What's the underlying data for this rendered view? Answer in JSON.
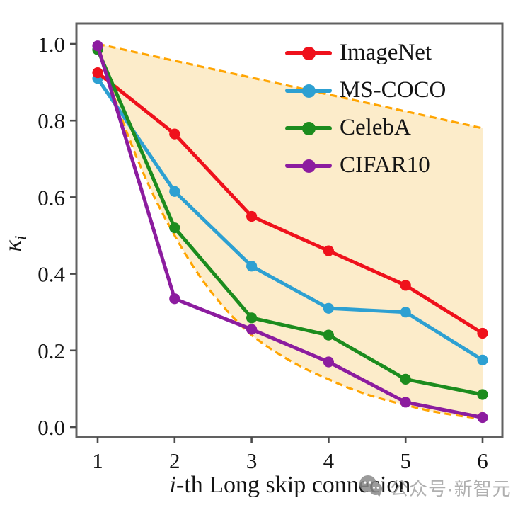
{
  "watermark": {
    "text": "公众号·新智元",
    "icon": "wechat-chat-bubbles-icon",
    "icon_color": "#8a8a8a",
    "text_color": "#a3a3a3"
  },
  "chart_data": {
    "type": "line",
    "x": [
      1,
      2,
      3,
      4,
      5,
      6
    ],
    "series": [
      {
        "name": "ImageNet",
        "color": "#ef111c",
        "values": [
          0.925,
          0.765,
          0.55,
          0.46,
          0.37,
          0.245
        ]
      },
      {
        "name": "MS-COCO",
        "color": "#2da0d2",
        "values": [
          0.91,
          0.615,
          0.42,
          0.31,
          0.3,
          0.175
        ]
      },
      {
        "name": "CelebA",
        "color": "#1c8c1e",
        "values": [
          0.985,
          0.52,
          0.285,
          0.24,
          0.125,
          0.085
        ]
      },
      {
        "name": "CIFAR10",
        "color": "#8c1c9f",
        "values": [
          0.995,
          0.335,
          0.255,
          0.17,
          0.065,
          0.025
        ]
      }
    ],
    "envelope": {
      "style": "dashed",
      "line_color": "#ffa502",
      "fill_color": "#fcecca",
      "upper": [
        1.0,
        0.956,
        0.912,
        0.868,
        0.824,
        0.78
      ],
      "lower": [
        1.0,
        0.5,
        0.24,
        0.125,
        0.058,
        0.022
      ]
    },
    "xlabel_italic": "i",
    "xlabel_rest": "-th Long skip connecion",
    "ylabel": "κ",
    "ylabel_sub": "i",
    "xticks": [
      "1",
      "2",
      "3",
      "4",
      "5",
      "6"
    ],
    "yticks": [
      "0.0",
      "0.2",
      "0.4",
      "0.6",
      "0.8",
      "1.0"
    ],
    "ytick_values": [
      0.0,
      0.2,
      0.4,
      0.6,
      0.8,
      1.0
    ],
    "xlim": [
      1,
      6
    ],
    "ylim": [
      0.0,
      1.05
    ],
    "grid": false,
    "legend_position": "top-right",
    "draw_order": [
      "MS-COCO",
      "ImageNet",
      "CelebA",
      "CIFAR10"
    ]
  }
}
